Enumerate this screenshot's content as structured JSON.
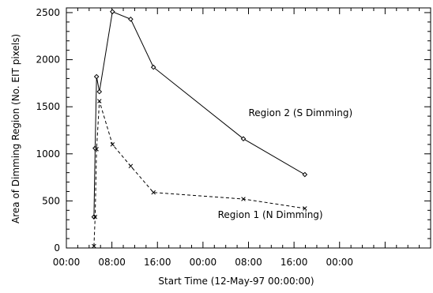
{
  "chart_data": {
    "type": "line",
    "title": "",
    "xlabel": "Start Time (12-May-97 00:00:00)",
    "ylabel": "Area of Dimming Region (No. EIT pixels)",
    "x_unit": "hours since 12-May-97 00:00",
    "xlim": [
      0,
      64
    ],
    "ylim": [
      0,
      2550
    ],
    "x_ticks": [
      0,
      8,
      16,
      24,
      32,
      40,
      48,
      56,
      64
    ],
    "x_tick_labels": [
      "00:00",
      "08:00",
      "16:00",
      "00:00",
      "08:00",
      "16:00",
      "00:00",
      "",
      ""
    ],
    "y_ticks": [
      0,
      500,
      1000,
      1500,
      2000,
      2500
    ],
    "y_tick_labels": [
      "0",
      "500",
      "1000",
      "1500",
      "2000",
      "2500"
    ],
    "grid": false,
    "series": [
      {
        "name": "Region 2 (S Dimming)",
        "line": "solid",
        "marker": "diamond",
        "x": [
          4.85,
          5.05,
          5.3,
          5.8,
          8.1,
          11.3,
          15.3,
          31.1,
          41.9
        ],
        "y": [
          330,
          1060,
          1820,
          1660,
          2510,
          2430,
          1920,
          1160,
          780
        ]
      },
      {
        "name": "Region 1 (N Dimming)",
        "line": "dashed",
        "marker": "x",
        "x": [
          4.85,
          5.05,
          5.3,
          5.8,
          8.1,
          11.3,
          15.3,
          31.1,
          41.9
        ],
        "y": [
          20,
          330,
          1050,
          1560,
          1100,
          870,
          590,
          520,
          420
        ]
      }
    ],
    "annotations": [
      {
        "text": "Region 2 (S Dimming)",
        "x": 32,
        "y": 1400
      },
      {
        "text": "Region 1 (N Dimming)",
        "x": 26.6,
        "y": 320
      }
    ]
  }
}
